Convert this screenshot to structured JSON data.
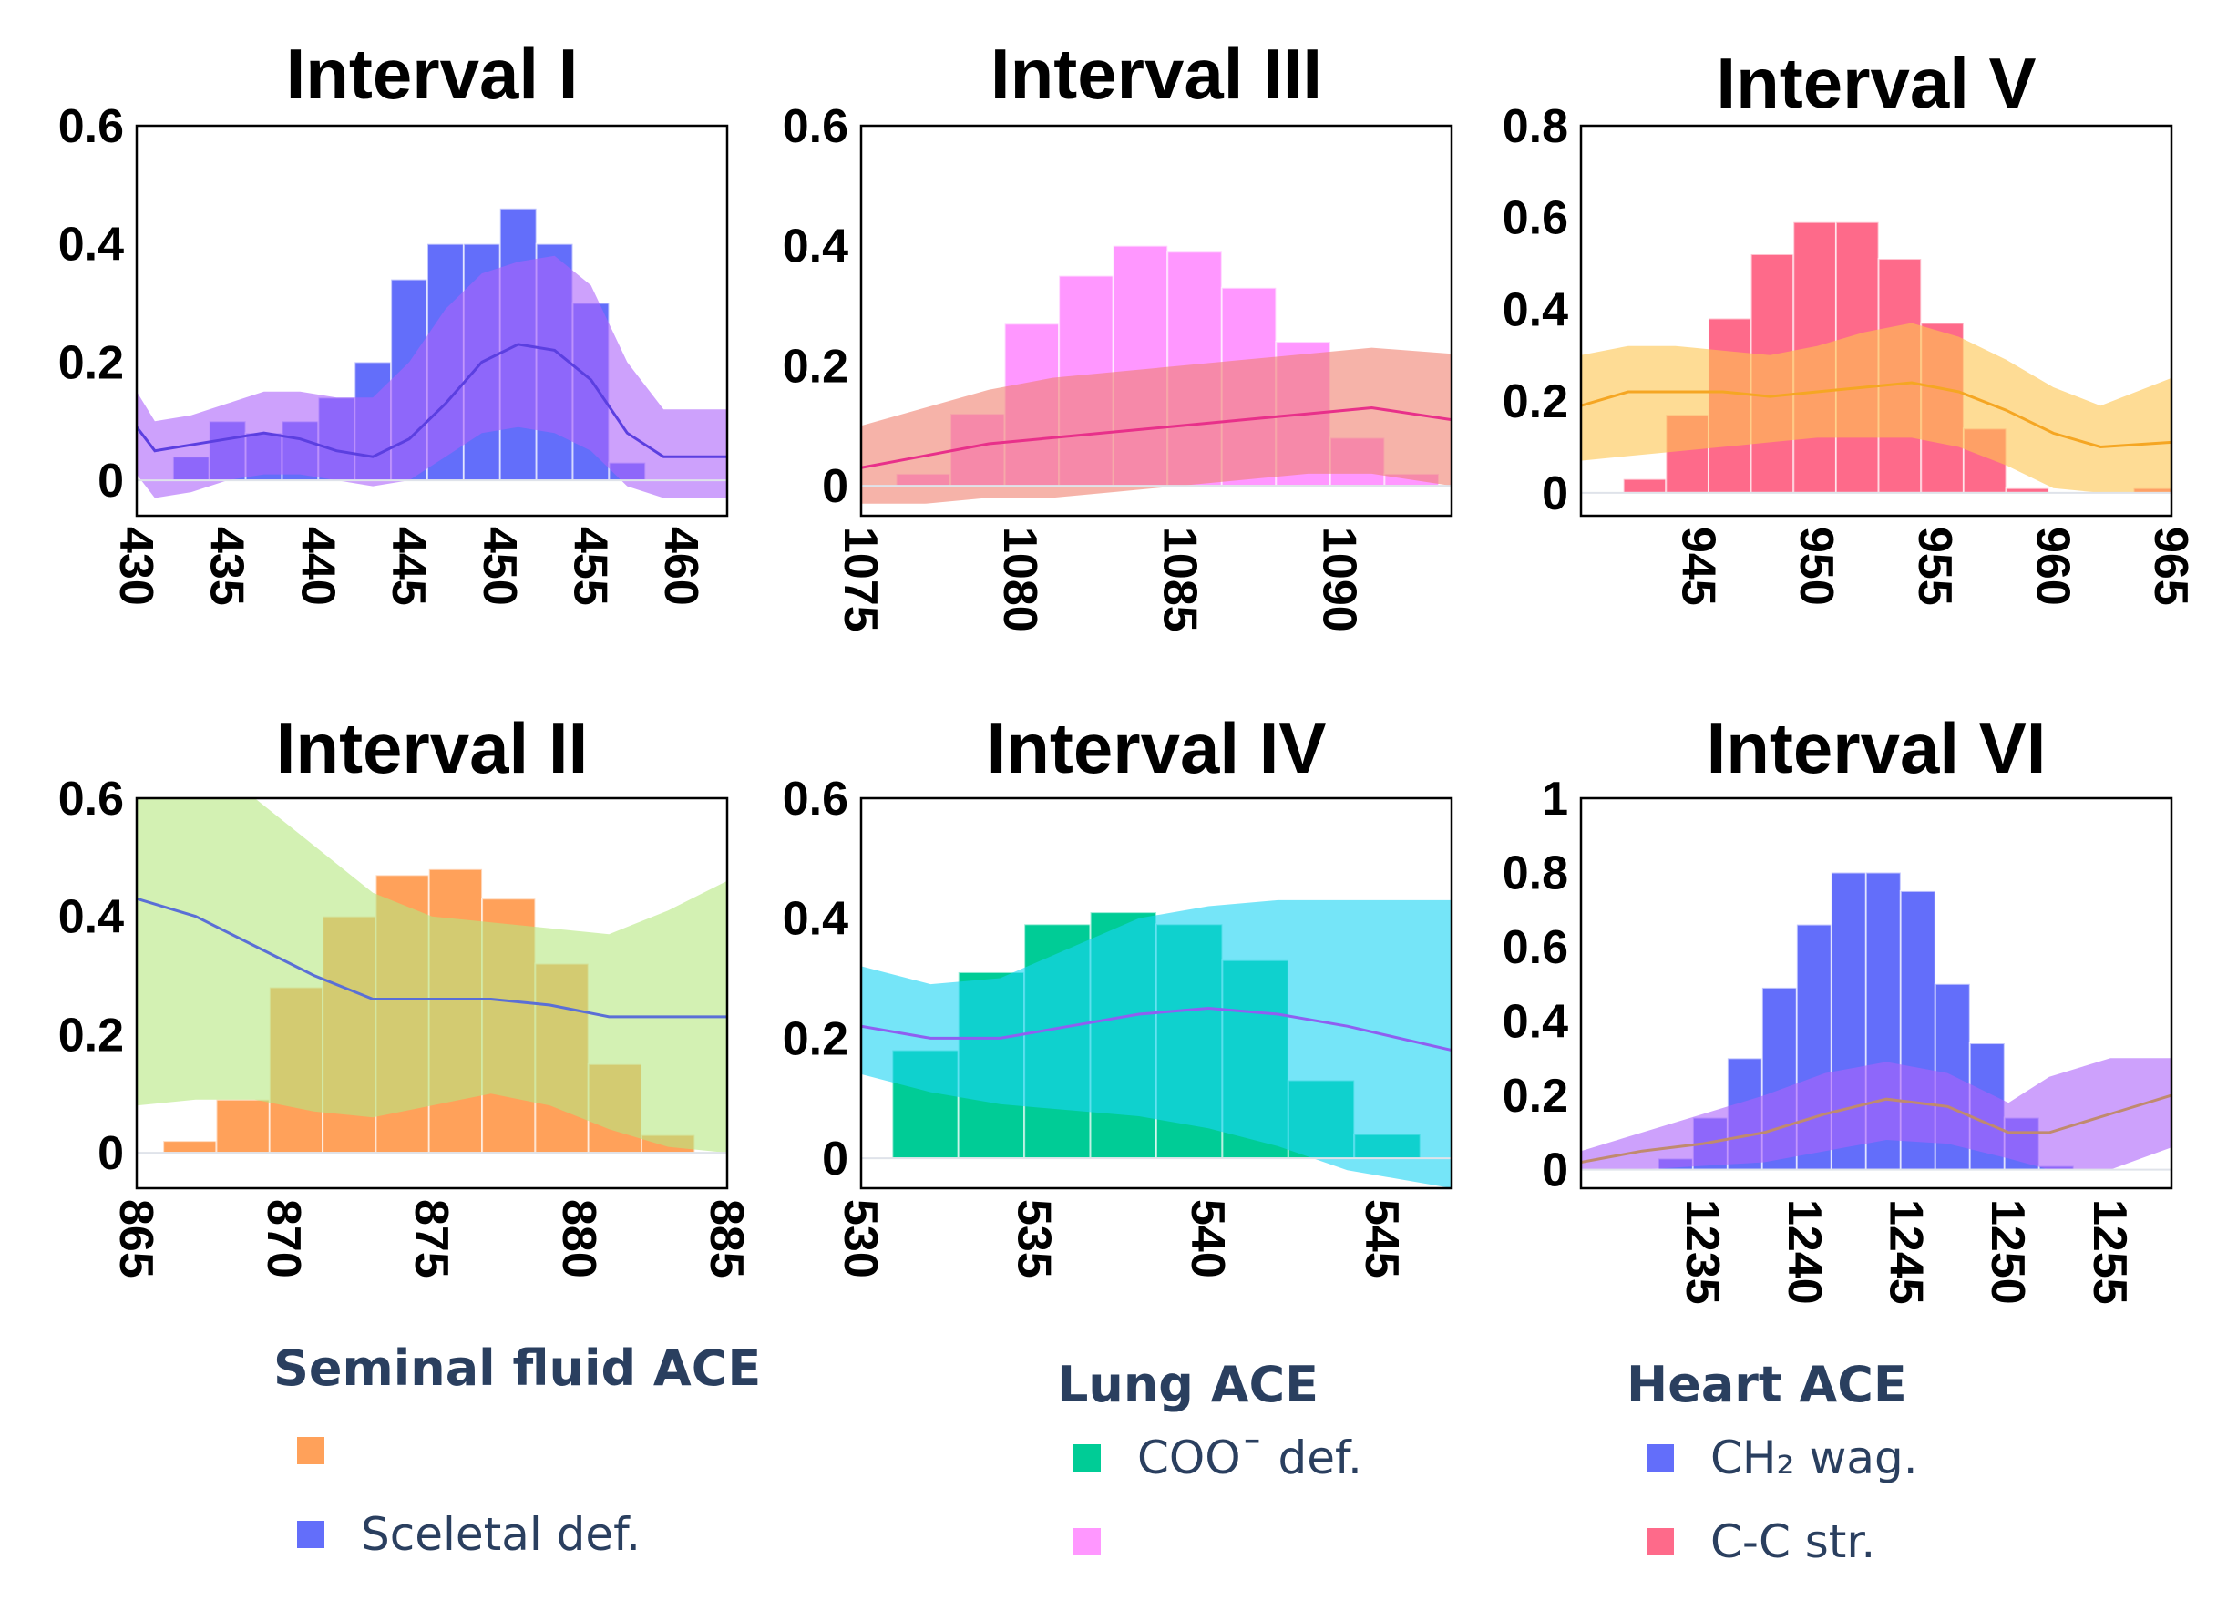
{
  "chart_data": [
    {
      "type": "bar",
      "title": "Interval I",
      "xlim": [
        430,
        462.5
      ],
      "ylim": [
        -0.06,
        0.6
      ],
      "xticks": [
        430,
        435,
        440,
        445,
        450,
        455,
        460
      ],
      "yticks": [
        0,
        0.2,
        0.4,
        0.6
      ],
      "bar_series": {
        "name": "Sceletal def.",
        "color": "#636efa",
        "bin_width": 2,
        "bin_starts": [
          432,
          434,
          436,
          438,
          440,
          442,
          444,
          446,
          448,
          450,
          452,
          454,
          456
        ],
        "values": [
          0.04,
          0.1,
          0.08,
          0.1,
          0.14,
          0.2,
          0.34,
          0.4,
          0.4,
          0.46,
          0.4,
          0.3,
          0.03
        ]
      },
      "band_series": {
        "color": "#ab63fa",
        "x": [
          430,
          431,
          433,
          435,
          437,
          439,
          441,
          443,
          445,
          447,
          449,
          451,
          453,
          455,
          457,
          459,
          462.5
        ],
        "mean": [
          0.09,
          0.05,
          0.06,
          0.07,
          0.08,
          0.07,
          0.05,
          0.04,
          0.07,
          0.13,
          0.2,
          0.23,
          0.22,
          0.17,
          0.08,
          0.04,
          0.04
        ],
        "upper": [
          0.15,
          0.1,
          0.11,
          0.13,
          0.15,
          0.15,
          0.14,
          0.14,
          0.2,
          0.29,
          0.35,
          0.37,
          0.38,
          0.33,
          0.2,
          0.12,
          0.12
        ],
        "lower": [
          0.01,
          -0.03,
          -0.02,
          0.0,
          0.01,
          0.01,
          0.0,
          -0.01,
          0.0,
          0.04,
          0.08,
          0.09,
          0.08,
          0.05,
          -0.01,
          -0.03,
          -0.03
        ]
      }
    },
    {
      "type": "bar",
      "title": "Interval III",
      "xlim": [
        1075,
        1093.5
      ],
      "ylim": [
        -0.05,
        0.6
      ],
      "xticks": [
        1075,
        1080,
        1085,
        1090
      ],
      "yticks": [
        0,
        0.2,
        0.4,
        0.6
      ],
      "bar_series": {
        "name": "",
        "color": "#ff97ff",
        "bin_width": 1.7,
        "bin_starts": [
          1076.1,
          1077.8,
          1079.5,
          1081.2,
          1082.9,
          1084.6,
          1086.3,
          1088.0,
          1089.7,
          1091.4
        ],
        "values": [
          0.02,
          0.12,
          0.27,
          0.35,
          0.4,
          0.39,
          0.33,
          0.24,
          0.08,
          0.02
        ]
      },
      "band_series": {
        "color": "#f08070",
        "x": [
          1075,
          1077,
          1079,
          1081,
          1083,
          1085,
          1087,
          1089,
          1091,
          1093.5
        ],
        "mean": [
          0.03,
          0.05,
          0.07,
          0.08,
          0.09,
          0.1,
          0.11,
          0.12,
          0.13,
          0.11
        ],
        "upper": [
          0.1,
          0.13,
          0.16,
          0.18,
          0.19,
          0.2,
          0.21,
          0.22,
          0.23,
          0.22
        ],
        "lower": [
          -0.03,
          -0.03,
          -0.02,
          -0.02,
          -0.01,
          0.0,
          0.01,
          0.02,
          0.02,
          0.0
        ]
      }
    },
    {
      "type": "bar",
      "title": "Interval V",
      "xlim": [
        940,
        965
      ],
      "ylim": [
        -0.05,
        0.8
      ],
      "xticks": [
        945,
        950,
        955,
        960,
        965
      ],
      "yticks": [
        0,
        0.2,
        0.4,
        0.6,
        0.8
      ],
      "bar_series": {
        "name": "C-C str.",
        "color": "#fe6a8a",
        "bin_width": 1.8,
        "bin_starts": [
          941.8,
          943.6,
          945.4,
          947.2,
          949.0,
          950.8,
          952.6,
          954.4,
          956.2,
          958.0,
          963.4
        ],
        "values": [
          0.03,
          0.17,
          0.38,
          0.52,
          0.59,
          0.59,
          0.51,
          0.37,
          0.14,
          0.01,
          0.01
        ]
      },
      "band_series": {
        "color": "#fec44f",
        "x": [
          940,
          942,
          944,
          946,
          948,
          950,
          952,
          954,
          956,
          958,
          960,
          962,
          965
        ],
        "mean": [
          0.19,
          0.22,
          0.22,
          0.22,
          0.21,
          0.22,
          0.23,
          0.24,
          0.22,
          0.18,
          0.13,
          0.1,
          0.11
        ],
        "upper": [
          0.3,
          0.32,
          0.32,
          0.31,
          0.3,
          0.32,
          0.35,
          0.37,
          0.34,
          0.29,
          0.23,
          0.19,
          0.25
        ],
        "lower": [
          0.07,
          0.08,
          0.09,
          0.1,
          0.11,
          0.12,
          0.12,
          0.12,
          0.1,
          0.06,
          0.01,
          0.0,
          0.0
        ]
      }
    },
    {
      "type": "bar",
      "title": "Interval II",
      "xlim": [
        865,
        885
      ],
      "ylim": [
        -0.06,
        0.6
      ],
      "xticks": [
        865,
        870,
        875,
        880,
        885
      ],
      "yticks": [
        0,
        0.2,
        0.4,
        0.6
      ],
      "bar_series": {
        "name": "",
        "color": "#ffa15a",
        "bin_width": 1.8,
        "bin_starts": [
          865.9,
          867.7,
          869.5,
          871.3,
          873.1,
          874.9,
          876.7,
          878.5,
          880.3,
          882.1
        ],
        "values": [
          0.02,
          0.09,
          0.28,
          0.4,
          0.47,
          0.48,
          0.43,
          0.32,
          0.15,
          0.03
        ]
      },
      "band_series": {
        "color": "#b6e880",
        "x": [
          865,
          867,
          869,
          871,
          873,
          875,
          877,
          879,
          881,
          883,
          885
        ],
        "mean": [
          0.43,
          0.4,
          0.35,
          0.3,
          0.26,
          0.26,
          0.26,
          0.25,
          0.23,
          0.23,
          0.23
        ],
        "upper": [
          0.62,
          0.62,
          0.6,
          0.52,
          0.44,
          0.4,
          0.39,
          0.38,
          0.37,
          0.41,
          0.46
        ],
        "lower": [
          0.08,
          0.09,
          0.09,
          0.07,
          0.06,
          0.08,
          0.1,
          0.08,
          0.04,
          0.01,
          0.0
        ]
      }
    },
    {
      "type": "bar",
      "title": "Interval IV",
      "xlim": [
        530,
        547
      ],
      "ylim": [
        -0.05,
        0.6
      ],
      "xticks": [
        530,
        535,
        540,
        545
      ],
      "yticks": [
        0,
        0.2,
        0.4,
        0.6
      ],
      "bar_series": {
        "name": "COO¯ def.",
        "color": "#00cc96",
        "bin_width": 1.9,
        "bin_starts": [
          530.9,
          532.8,
          534.7,
          536.6,
          538.5,
          540.4,
          542.3,
          544.2
        ],
        "values": [
          0.18,
          0.31,
          0.39,
          0.41,
          0.39,
          0.33,
          0.13,
          0.04
        ]
      },
      "band_series": {
        "color": "#19d3f3",
        "x": [
          530,
          532,
          534,
          536,
          538,
          540,
          542,
          544,
          547
        ],
        "mean": [
          0.22,
          0.2,
          0.2,
          0.22,
          0.24,
          0.25,
          0.24,
          0.22,
          0.18
        ],
        "upper": [
          0.32,
          0.29,
          0.3,
          0.35,
          0.4,
          0.42,
          0.43,
          0.43,
          0.43
        ],
        "lower": [
          0.14,
          0.11,
          0.09,
          0.08,
          0.07,
          0.05,
          0.02,
          -0.02,
          -0.05
        ]
      }
    },
    {
      "type": "bar",
      "title": "Interval VI",
      "xlim": [
        1229,
        1258
      ],
      "ylim": [
        -0.05,
        1.0
      ],
      "xticks": [
        1235,
        1240,
        1245,
        1250,
        1255
      ],
      "yticks": [
        0,
        0.2,
        0.4,
        0.6,
        0.8,
        1
      ],
      "bar_series": {
        "name": "CH₂ wag.",
        "color": "#636efa",
        "bin_width": 1.7,
        "bin_starts": [
          1232.8,
          1234.5,
          1236.2,
          1237.9,
          1239.6,
          1241.3,
          1243.0,
          1244.7,
          1246.4,
          1248.1,
          1249.8,
          1251.5
        ],
        "values": [
          0.03,
          0.14,
          0.3,
          0.49,
          0.66,
          0.8,
          0.8,
          0.75,
          0.5,
          0.34,
          0.14,
          0.01
        ]
      },
      "band_series": {
        "color": "#ab63fa",
        "x": [
          1229,
          1232,
          1235,
          1238,
          1241,
          1244,
          1247,
          1250,
          1252,
          1255,
          1258
        ],
        "mean": [
          0.02,
          0.05,
          0.07,
          0.1,
          0.15,
          0.19,
          0.17,
          0.1,
          0.1,
          0.15,
          0.2
        ],
        "upper": [
          0.05,
          0.1,
          0.15,
          0.2,
          0.26,
          0.29,
          0.26,
          0.18,
          0.25,
          0.3,
          0.3
        ],
        "lower": [
          0.0,
          0.0,
          0.01,
          0.02,
          0.05,
          0.08,
          0.07,
          0.03,
          0.0,
          0.0,
          0.06
        ]
      }
    }
  ],
  "legends": [
    {
      "title": "Seminal fluid ACE",
      "items": [
        {
          "label": "",
          "color": "#ffa15a"
        },
        {
          "label": "Sceletal def.",
          "color": "#636efa"
        }
      ]
    },
    {
      "title": "Lung ACE",
      "items": [
        {
          "label": "COO¯ def.",
          "color": "#00cc96"
        },
        {
          "label": "",
          "color": "#ff97ff"
        }
      ]
    },
    {
      "title": "Heart ACE",
      "items": [
        {
          "label": "CH₂ wag.",
          "color": "#636efa"
        },
        {
          "label": "C-C str.",
          "color": "#fe6a8a"
        }
      ]
    }
  ]
}
